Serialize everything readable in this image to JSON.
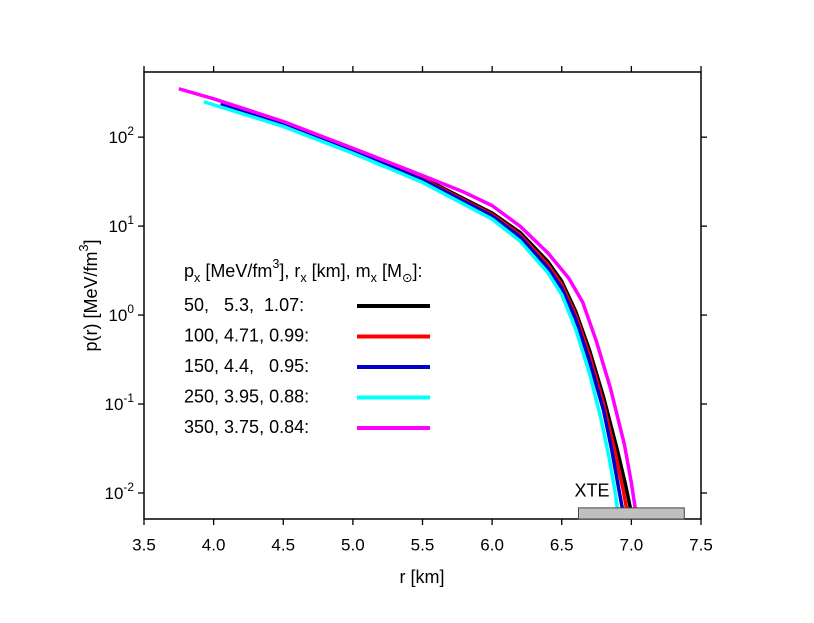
{
  "chart_data": {
    "type": "line",
    "xlabel": "r [km]",
    "ylabel": [
      {
        "text": "p(r) [MeV/fm"
      },
      {
        "text": "3",
        "pos": "sup"
      },
      {
        "text": "]"
      }
    ],
    "xlim": [
      3.5,
      7.5
    ],
    "ylim": [
      0.0051,
      540
    ],
    "log_y": true,
    "xticks": [
      3.5,
      {
        "value": 4,
        "label": "4.0"
      },
      4.5,
      {
        "value": 5,
        "label": "5.0"
      },
      5.5,
      {
        "value": 6,
        "label": "6.0"
      },
      6.5,
      {
        "value": 7,
        "label": "7.0"
      },
      7.5
    ],
    "yticks": [
      {
        "value": 0.01,
        "label": "10",
        "exponent": "-2"
      },
      {
        "value": 0.1,
        "label": "10",
        "exponent": "-1"
      },
      {
        "value": 1,
        "label": "10",
        "exponent": "0"
      },
      {
        "value": 10,
        "label": "10",
        "exponent": "1"
      },
      {
        "value": 100,
        "label": "10",
        "exponent": "2"
      }
    ],
    "legend_title": [
      {
        "text": "p"
      },
      {
        "text": "x",
        "pos": "sub"
      },
      {
        "text": " [MeV/fm"
      },
      {
        "text": "3",
        "pos": "sup"
      },
      {
        "text": "], r"
      },
      {
        "text": "x",
        "pos": "sub"
      },
      {
        "text": " [km], m"
      },
      {
        "text": "x",
        "pos": "sub"
      },
      {
        "text": " [M"
      },
      {
        "text": "⊙",
        "pos": "sub"
      },
      {
        "text": "]:"
      }
    ],
    "series": [
      {
        "name": "50,   5.3,  1.07:",
        "color": "#000000",
        "x": [
          4.2,
          4.5,
          5.0,
          5.5,
          6.0,
          6.2,
          6.4,
          6.5,
          6.6,
          6.7,
          6.8,
          6.9,
          6.96,
          7.01
        ],
        "values": [
          200,
          145,
          73,
          35,
          14,
          8.5,
          4,
          2.4,
          1.1,
          0.4,
          0.12,
          0.03,
          0.012,
          0.005
        ]
      },
      {
        "name": "100, 4.71, 0.99:",
        "color": "#ff0000",
        "x": [
          4.1,
          4.5,
          5.0,
          5.5,
          6.0,
          6.2,
          6.4,
          6.5,
          6.6,
          6.7,
          6.8,
          6.88,
          6.94,
          6.98
        ],
        "values": [
          225,
          143,
          72,
          34,
          13.5,
          8,
          3.7,
          2.2,
          1.0,
          0.35,
          0.1,
          0.03,
          0.011,
          0.005
        ]
      },
      {
        "name": "150, 4.4,   0.95:",
        "color": "#0000cc",
        "x": [
          4.05,
          4.5,
          5.0,
          5.5,
          6.0,
          6.2,
          6.4,
          6.5,
          6.6,
          6.7,
          6.8,
          6.86,
          6.91,
          6.95
        ],
        "values": [
          235,
          142,
          71,
          33,
          13,
          7.6,
          3.4,
          2.0,
          0.9,
          0.3,
          0.085,
          0.03,
          0.011,
          0.005
        ]
      },
      {
        "name": "250, 3.95, 0.88:",
        "color": "#00ffff",
        "x": [
          3.93,
          4.5,
          5.0,
          5.5,
          6.0,
          6.2,
          6.4,
          6.5,
          6.6,
          6.7,
          6.78,
          6.84,
          6.88,
          6.91
        ],
        "values": [
          250,
          132,
          66,
          31,
          12,
          6.8,
          3.0,
          1.7,
          0.7,
          0.22,
          0.07,
          0.025,
          0.011,
          0.005
        ]
      },
      {
        "name": "350, 3.75, 0.84:",
        "color": "#ff00ff",
        "x": [
          3.75,
          4.0,
          4.5,
          5.0,
          5.5,
          5.8,
          6.0,
          6.2,
          6.4,
          6.55,
          6.65,
          6.75,
          6.85,
          6.95,
          7.0,
          7.04
        ],
        "values": [
          350,
          270,
          150,
          75,
          37,
          24,
          17,
          10,
          5,
          2.6,
          1.4,
          0.5,
          0.15,
          0.035,
          0.013,
          0.005
        ]
      }
    ],
    "annotation": {
      "label": "XTE",
      "xlim": [
        6.62,
        7.38
      ],
      "ylim": [
        0.0051,
        0.0068
      ],
      "color": "#c0c0c0"
    }
  }
}
